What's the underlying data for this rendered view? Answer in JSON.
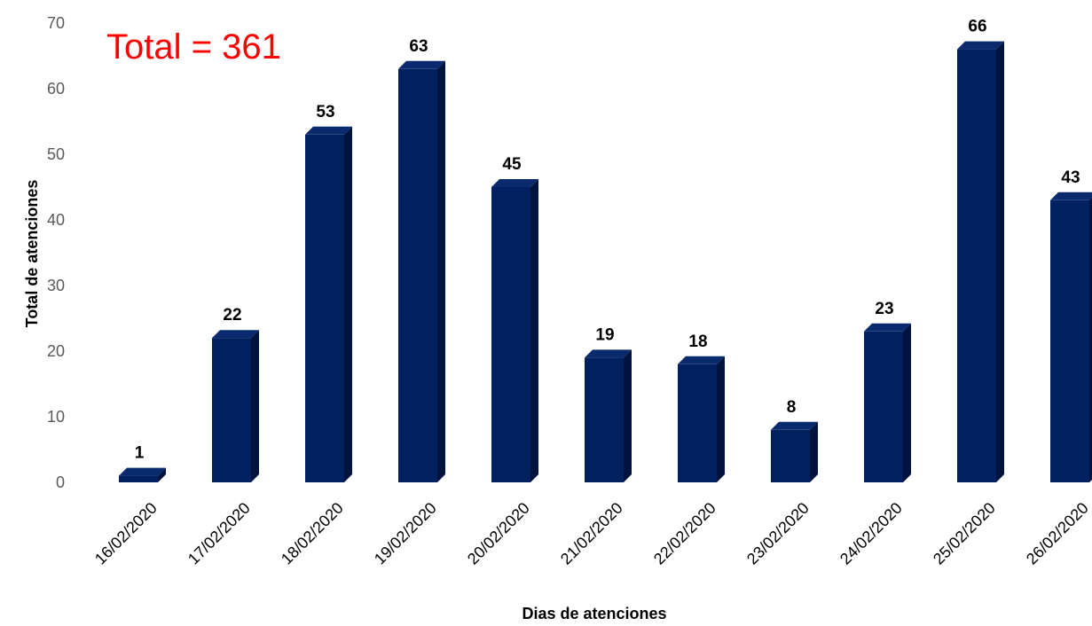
{
  "chart_data": {
    "type": "bar",
    "categories": [
      "16/02/2020",
      "17/02/2020",
      "18/02/2020",
      "19/02/2020",
      "20/02/2020",
      "21/02/2020",
      "22/02/2020",
      "23/02/2020",
      "24/02/2020",
      "25/02/2020",
      "26/02/2020"
    ],
    "values": [
      1,
      22,
      53,
      63,
      45,
      19,
      18,
      8,
      23,
      66,
      43
    ],
    "data_labels": [
      "1",
      "22",
      "53",
      "63",
      "45",
      "19",
      "18",
      "8",
      "23",
      "66",
      "43"
    ],
    "title": "",
    "xlabel": "Dias de atenciones",
    "ylabel": "Total de atenciones",
    "ylim": [
      0,
      70
    ],
    "yticks": [
      0,
      10,
      20,
      30,
      40,
      50,
      60,
      70
    ],
    "grid": false,
    "annotation": {
      "text": "Total = 361",
      "color": "#ff0000"
    },
    "colors": {
      "bar_front": "#012060",
      "bar_side": "#00133d",
      "bar_top": "#0a2a6e"
    }
  }
}
